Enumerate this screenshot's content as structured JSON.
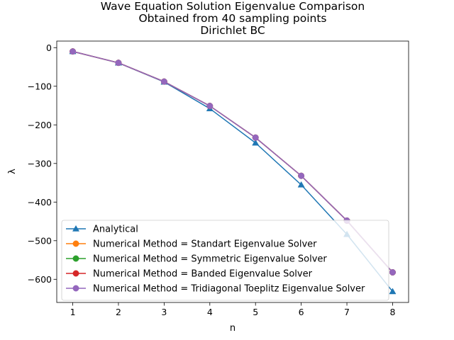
{
  "chart_data": {
    "type": "line",
    "title": [
      "Wave Equation Solution Eigenvalue Comparison",
      "Obtained from 40 sampling points",
      "Dirichlet BC"
    ],
    "xlabel": "n",
    "ylabel": "λ",
    "xlim": [
      0.65,
      8.35
    ],
    "ylim": [
      -660,
      17
    ],
    "xticks": [
      1,
      2,
      3,
      4,
      5,
      6,
      7,
      8
    ],
    "yticks": [
      0,
      -100,
      -200,
      -300,
      -400,
      -500,
      -600
    ],
    "grid": false,
    "legend_position": "lower-left",
    "x": [
      1,
      2,
      3,
      4,
      5,
      6,
      7,
      8
    ],
    "series": [
      {
        "name": "Analytical",
        "color": "#1f77b4",
        "marker": "triangle",
        "values": [
          -9.87,
          -39.48,
          -88.83,
          -157.91,
          -246.74,
          -355.31,
          -483.61,
          -631.65
        ]
      },
      {
        "name": "Numerical Method = Standart Eigenvalue Solver",
        "color": "#ff7f0e",
        "marker": "circle",
        "values": [
          -9.86,
          -39.3,
          -87.9,
          -151.0,
          -233.0,
          -332.0,
          -448.0,
          -582.0
        ]
      },
      {
        "name": "Numerical Method = Symmetric Eigenvalue Solver",
        "color": "#2ca02c",
        "marker": "circle",
        "values": [
          -9.86,
          -39.3,
          -87.9,
          -151.0,
          -233.0,
          -332.0,
          -448.0,
          -582.0
        ]
      },
      {
        "name": "Numerical Method = Banded Eigenvalue Solver",
        "color": "#d62728",
        "marker": "circle",
        "values": [
          -9.86,
          -39.3,
          -87.9,
          -151.0,
          -233.0,
          -332.0,
          -448.0,
          -582.0
        ]
      },
      {
        "name": "Numerical Method = Tridiagonal Toeplitz Eigenvalue Solver",
        "color": "#9467bd",
        "marker": "circle",
        "values": [
          -9.86,
          -39.3,
          -87.9,
          -151.0,
          -233.0,
          -332.0,
          -448.0,
          -582.0
        ]
      }
    ]
  }
}
